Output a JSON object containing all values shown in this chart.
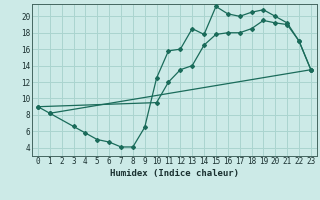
{
  "xlabel": "Humidex (Indice chaleur)",
  "bg_color": "#cceae7",
  "grid_color": "#aad4cf",
  "line_color": "#1a6b5a",
  "xlim": [
    -0.5,
    23.5
  ],
  "ylim": [
    3.0,
    21.5
  ],
  "xticks": [
    0,
    1,
    2,
    3,
    4,
    5,
    6,
    7,
    8,
    9,
    10,
    11,
    12,
    13,
    14,
    15,
    16,
    17,
    18,
    19,
    20,
    21,
    22,
    23
  ],
  "yticks": [
    4,
    6,
    8,
    10,
    12,
    14,
    16,
    18,
    20
  ],
  "line1_x": [
    0,
    1,
    3,
    4,
    5,
    6,
    7,
    8,
    9,
    10,
    11,
    12,
    13,
    14,
    15,
    16,
    17,
    18,
    19,
    20,
    21,
    22,
    23
  ],
  "line1_y": [
    9.0,
    8.2,
    6.6,
    5.8,
    5.0,
    4.7,
    4.1,
    4.1,
    6.5,
    12.5,
    15.8,
    16.0,
    18.5,
    17.8,
    21.2,
    20.3,
    20.0,
    20.5,
    20.8,
    20.0,
    19.2,
    17.0,
    13.5
  ],
  "line2_x": [
    0,
    10,
    11,
    12,
    13,
    14,
    15,
    16,
    17,
    18,
    19,
    20,
    21,
    22,
    23
  ],
  "line2_y": [
    9.0,
    9.5,
    12.0,
    13.5,
    14.0,
    16.5,
    17.8,
    18.0,
    18.0,
    18.5,
    19.5,
    19.2,
    19.0,
    17.0,
    13.5
  ],
  "line3_x": [
    1,
    23
  ],
  "line3_y": [
    8.2,
    13.5
  ],
  "tick_fontsize": 5.5,
  "xlabel_fontsize": 6.5
}
